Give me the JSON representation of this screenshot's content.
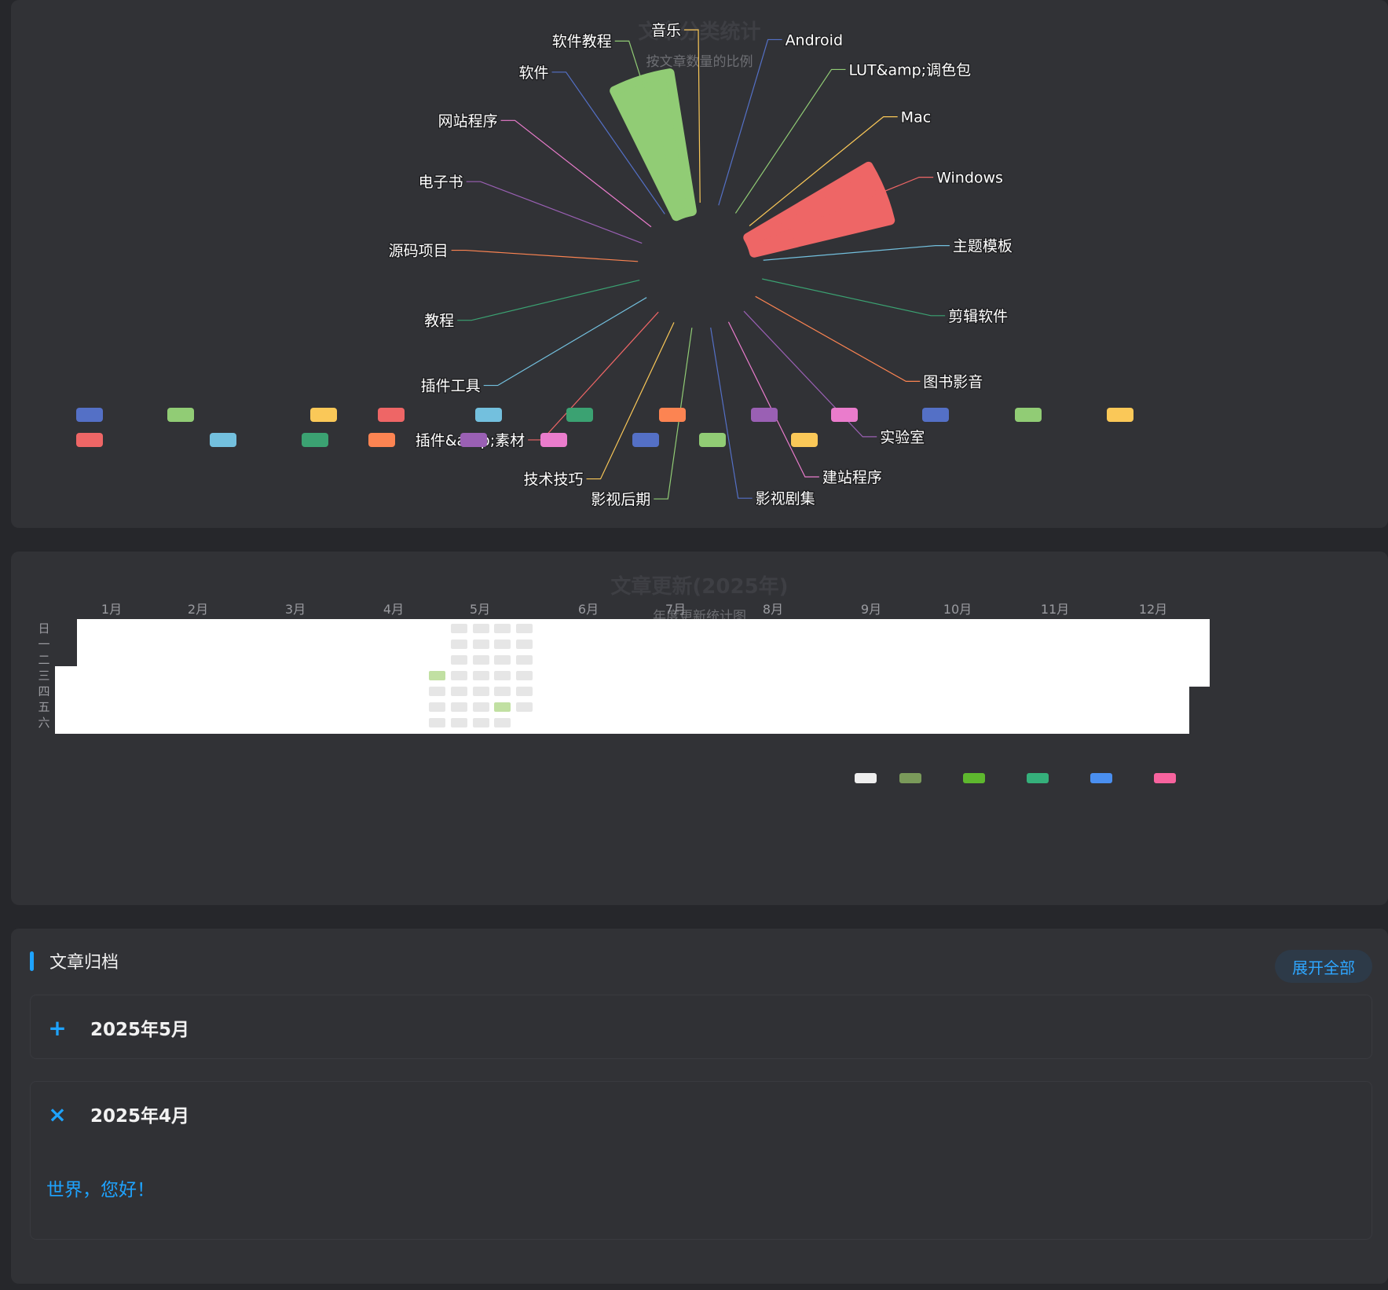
{
  "category_chart": {
    "title": "文章分类统计",
    "subtitle": "按文章数量的比例",
    "colors": [
      "#5470c6",
      "#91cc75",
      "#fac858",
      "#ee6666",
      "#73c0de",
      "#3ba272",
      "#fc8452",
      "#9a60b4",
      "#ea7ccc"
    ],
    "chart_data": {
      "type": "pie",
      "title": "文章分类统计",
      "subtitle": "按文章数量的比例",
      "categories": [
        "Android",
        "LUT&amp;调色包",
        "Mac",
        "Windows",
        "主题模板",
        "剪辑软件",
        "图书影音",
        "实验室",
        "建站程序",
        "影视剧集",
        "影视后期",
        "技术技巧",
        "插件&amp;素材",
        "插件工具",
        "教程",
        "源码项目",
        "电子书",
        "网站程序",
        "软件",
        "软件教程",
        "音乐"
      ],
      "values": [
        0,
        0,
        0,
        2,
        0,
        0,
        0,
        0,
        0,
        0,
        0,
        0,
        0,
        0,
        0,
        0,
        0,
        0,
        0,
        2,
        0
      ],
      "legend_position": "bottom"
    }
  },
  "update_chart": {
    "title": "文章更新(2025年)",
    "subtitle": "年度更新统计图",
    "months": [
      "1月",
      "2月",
      "3月",
      "4月",
      "5月",
      "6月",
      "7月",
      "8月",
      "9月",
      "10月",
      "11月",
      "12月"
    ],
    "weekdays": [
      "日",
      "一",
      "二",
      "三",
      "四",
      "五",
      "六"
    ],
    "cell_empty": "#e6e6e6",
    "cell_active": "#c1e0a2",
    "legend_colors": [
      "#eeeeee",
      "#7a9a5a",
      "#5eb82e",
      "#35b07b",
      "#4a8ff0",
      "#f7639e"
    ],
    "chart_data": {
      "type": "heatmap",
      "title": "文章更新(2025年)",
      "subtitle": "年度更新统计图",
      "entries": [
        {
          "date": "2025-04-30",
          "count": 1
        },
        {
          "date": "2025-05-23",
          "count": 1
        }
      ]
    }
  },
  "archive": {
    "title": "文章归档",
    "expand_label": "展开全部",
    "months": [
      {
        "label": "2025年5月",
        "icon": "+",
        "expanded": false
      },
      {
        "label": "2025年4月",
        "icon": "×",
        "expanded": true,
        "posts": [
          "世界，您好！"
        ]
      }
    ]
  }
}
